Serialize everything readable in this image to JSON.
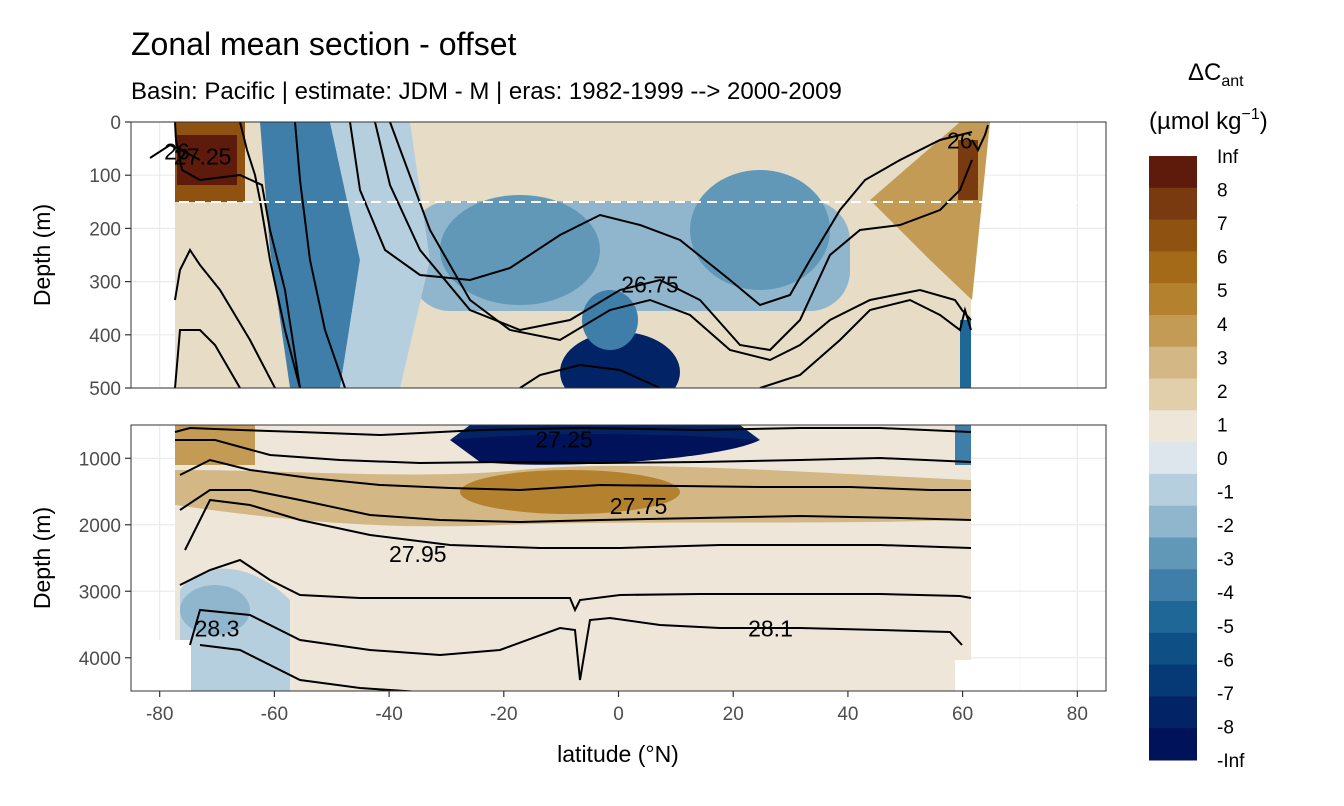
{
  "chart_data": {
    "type": "heatmap",
    "title": "Zonal mean section - offset",
    "subtitle": "Basin: Pacific | estimate: JDM - M | eras: 1982-1999 --> 2000-2009",
    "xlabel": "latitude (°N)",
    "ylabel": "Depth (m)",
    "x_ticks": [
      -80,
      -60,
      -40,
      -20,
      0,
      20,
      40,
      60,
      80
    ],
    "xlim": [
      -85,
      85
    ],
    "panels": [
      {
        "name": "upper",
        "ylim": [
          500,
          0
        ],
        "y_ticks": [
          0,
          100,
          200,
          300,
          400,
          500
        ],
        "dashed_line_depth": 150,
        "contour_labels": [
          {
            "text": "27.25",
            "lat": -72.5,
            "depth": 65
          },
          {
            "text": "26.75",
            "lat": 5.5,
            "depth": 305
          },
          {
            "text": "26",
            "lat": 59.5,
            "depth": 35
          },
          {
            "text": "26",
            "lat": -77,
            "depth": 55
          }
        ]
      },
      {
        "name": "lower",
        "ylim": [
          4500,
          500
        ],
        "y_ticks": [
          1000,
          2000,
          3000,
          4000
        ],
        "contour_labels": [
          {
            "text": "27.25",
            "lat": -9.5,
            "depth": 720
          },
          {
            "text": "27.75",
            "lat": 3.5,
            "depth": 1720
          },
          {
            "text": "27.95",
            "lat": -35,
            "depth": 2440
          },
          {
            "text": "28.3",
            "lat": -70,
            "depth": 3560
          },
          {
            "text": "28.1",
            "lat": 26.5,
            "depth": 3560
          }
        ]
      }
    ],
    "legend": {
      "title_main": "ΔC",
      "title_sub": "ant",
      "unit_prefix": "(µmol kg",
      "unit_exp": "−1",
      "unit_suffix": ")",
      "position": "right",
      "breaks": [
        "Inf",
        "8",
        "7",
        "6",
        "5",
        "4",
        "3",
        "2",
        "1",
        "0",
        "-1",
        "-2",
        "-3",
        "-4",
        "-5",
        "-6",
        "-7",
        "-8",
        "-Inf"
      ],
      "colors": [
        "#5e1a0b",
        "#7a3a10",
        "#8f5210",
        "#a56a18",
        "#b4822e",
        "#c39b55",
        "#d3b886",
        "#e0cfaa",
        "#eee7d9",
        "#dce6ec",
        "#b6cfde",
        "#8fb6cc",
        "#6198b8",
        "#3e7ea8",
        "#1e6796",
        "#0e4f86",
        "#063a76",
        "#022467",
        "#00135a"
      ]
    }
  }
}
